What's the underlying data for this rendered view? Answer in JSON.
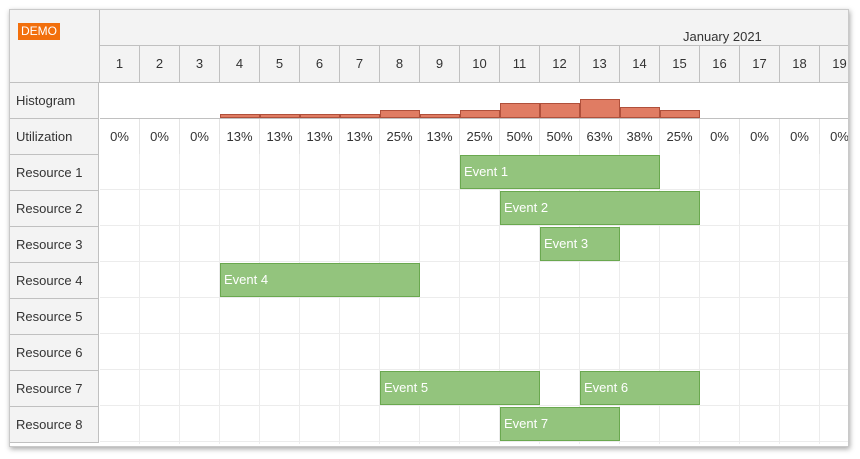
{
  "demo_badge": "DEMO",
  "month_label": "January 2021",
  "days": [
    "1",
    "2",
    "3",
    "4",
    "5",
    "6",
    "7",
    "8",
    "9",
    "10",
    "11",
    "12",
    "13",
    "14",
    "15",
    "16",
    "17",
    "18",
    "19"
  ],
  "histogram_label": "Histogram",
  "utilization_label": "Utilization",
  "utilization": [
    "0%",
    "0%",
    "0%",
    "13%",
    "13%",
    "13%",
    "13%",
    "25%",
    "13%",
    "25%",
    "50%",
    "50%",
    "63%",
    "38%",
    "25%",
    "0%",
    "0%",
    "0%",
    "0%"
  ],
  "utilization_values": [
    0,
    0,
    0,
    13,
    13,
    13,
    13,
    25,
    13,
    25,
    50,
    50,
    63,
    38,
    25,
    0,
    0,
    0,
    0
  ],
  "resources": [
    {
      "name": "Resource 1"
    },
    {
      "name": "Resource 2"
    },
    {
      "name": "Resource 3"
    },
    {
      "name": "Resource 4"
    },
    {
      "name": "Resource 5"
    },
    {
      "name": "Resource 6"
    },
    {
      "name": "Resource 7"
    },
    {
      "name": "Resource 8"
    }
  ],
  "events": [
    {
      "label": "Event 1",
      "resource": 1,
      "start_day": 10,
      "end_day": 14
    },
    {
      "label": "Event 2",
      "resource": 2,
      "start_day": 11,
      "end_day": 15
    },
    {
      "label": "Event 3",
      "resource": 3,
      "start_day": 12,
      "end_day": 13
    },
    {
      "label": "Event 4",
      "resource": 4,
      "start_day": 4,
      "end_day": 8
    },
    {
      "label": "Event 5",
      "resource": 7,
      "start_day": 8,
      "end_day": 11
    },
    {
      "label": "Event 6",
      "resource": 7,
      "start_day": 13,
      "end_day": 15
    },
    {
      "label": "Event 7",
      "resource": 8,
      "start_day": 11,
      "end_day": 13
    }
  ],
  "colors": {
    "histogram_bar": "#e07c63",
    "event_fill": "#93c47d",
    "demo_badge": "#f26f0c"
  }
}
